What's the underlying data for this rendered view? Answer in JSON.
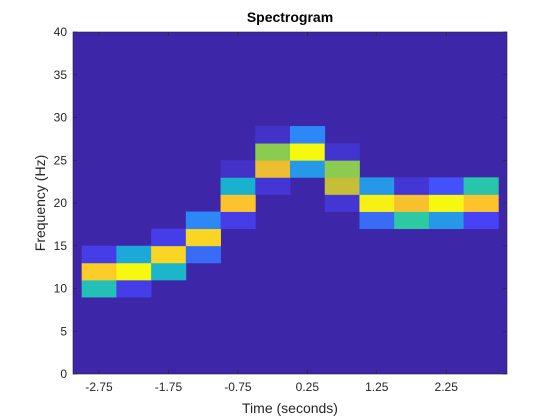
{
  "chart_data": {
    "type": "heatmap",
    "title": "Spectrogram",
    "xlabel": "Time (seconds)",
    "ylabel": "Frequency (Hz)",
    "xlim": [
      -3.125,
      3.125
    ],
    "ylim": [
      0,
      40
    ],
    "x_ticks": [
      -2.75,
      -1.75,
      -0.75,
      0.25,
      1.25,
      2.25
    ],
    "x_tick_labels": [
      "-2.75",
      "-1.75",
      "-0.75",
      "0.25",
      "1.25",
      "2.25"
    ],
    "y_ticks": [
      0,
      5,
      10,
      15,
      20,
      25,
      30,
      35,
      40
    ],
    "y_tick_labels": [
      "0",
      "5",
      "10",
      "15",
      "20",
      "25",
      "30",
      "35",
      "40"
    ],
    "time_bins": [
      -2.75,
      -2.25,
      -1.75,
      -1.25,
      -0.75,
      -0.25,
      0.25,
      0.75,
      1.25,
      1.75,
      2.25,
      2.75
    ],
    "time_bin_width": 0.5,
    "freq_bin_height": 2,
    "background_value": 0,
    "value_range": [
      0,
      1
    ],
    "colormap": [
      "#3e26a8",
      "#4743f8",
      "#2e87f7",
      "#17b1d2",
      "#2dc9a3",
      "#8ecb4d",
      "#d9ba32",
      "#fdc12e",
      "#f6f90f"
    ],
    "cells": [
      {
        "t": -2.75,
        "f": 10,
        "v": 0.45
      },
      {
        "t": -2.75,
        "f": 12,
        "v": 0.9
      },
      {
        "t": -2.75,
        "f": 14,
        "v": 0.1
      },
      {
        "t": -2.25,
        "f": 10,
        "v": 0.1
      },
      {
        "t": -2.25,
        "f": 12,
        "v": 1.0
      },
      {
        "t": -2.25,
        "f": 14,
        "v": 0.35
      },
      {
        "t": -1.75,
        "f": 12,
        "v": 0.4
      },
      {
        "t": -1.75,
        "f": 14,
        "v": 0.92
      },
      {
        "t": -1.75,
        "f": 16,
        "v": 0.1
      },
      {
        "t": -1.25,
        "f": 14,
        "v": 0.2
      },
      {
        "t": -1.25,
        "f": 16,
        "v": 0.92
      },
      {
        "t": -1.25,
        "f": 18,
        "v": 0.25
      },
      {
        "t": -0.75,
        "f": 18,
        "v": 0.1
      },
      {
        "t": -0.75,
        "f": 20,
        "v": 0.88
      },
      {
        "t": -0.75,
        "f": 22,
        "v": 0.38
      },
      {
        "t": -0.75,
        "f": 24,
        "v": 0.05
      },
      {
        "t": -0.25,
        "f": 22,
        "v": 0.07
      },
      {
        "t": -0.25,
        "f": 24,
        "v": 0.82
      },
      {
        "t": -0.25,
        "f": 26,
        "v": 0.62
      },
      {
        "t": -0.25,
        "f": 28,
        "v": 0.05
      },
      {
        "t": 0.25,
        "f": 24,
        "v": 0.3
      },
      {
        "t": 0.25,
        "f": 26,
        "v": 1.0
      },
      {
        "t": 0.25,
        "f": 28,
        "v": 0.25
      },
      {
        "t": 0.75,
        "f": 20,
        "v": 0.07
      },
      {
        "t": 0.75,
        "f": 22,
        "v": 0.72
      },
      {
        "t": 0.75,
        "f": 24,
        "v": 0.62
      },
      {
        "t": 0.75,
        "f": 26,
        "v": 0.06
      },
      {
        "t": 1.25,
        "f": 18,
        "v": 0.2
      },
      {
        "t": 1.25,
        "f": 20,
        "v": 0.98
      },
      {
        "t": 1.25,
        "f": 22,
        "v": 0.3
      },
      {
        "t": 1.75,
        "f": 18,
        "v": 0.5
      },
      {
        "t": 1.75,
        "f": 20,
        "v": 0.86
      },
      {
        "t": 1.75,
        "f": 22,
        "v": 0.07
      },
      {
        "t": 2.25,
        "f": 18,
        "v": 0.3
      },
      {
        "t": 2.25,
        "f": 20,
        "v": 1.0
      },
      {
        "t": 2.25,
        "f": 22,
        "v": 0.15
      },
      {
        "t": 2.75,
        "f": 18,
        "v": 0.12
      },
      {
        "t": 2.75,
        "f": 20,
        "v": 0.88
      },
      {
        "t": 2.75,
        "f": 22,
        "v": 0.48
      }
    ],
    "grid": false,
    "box": true
  }
}
